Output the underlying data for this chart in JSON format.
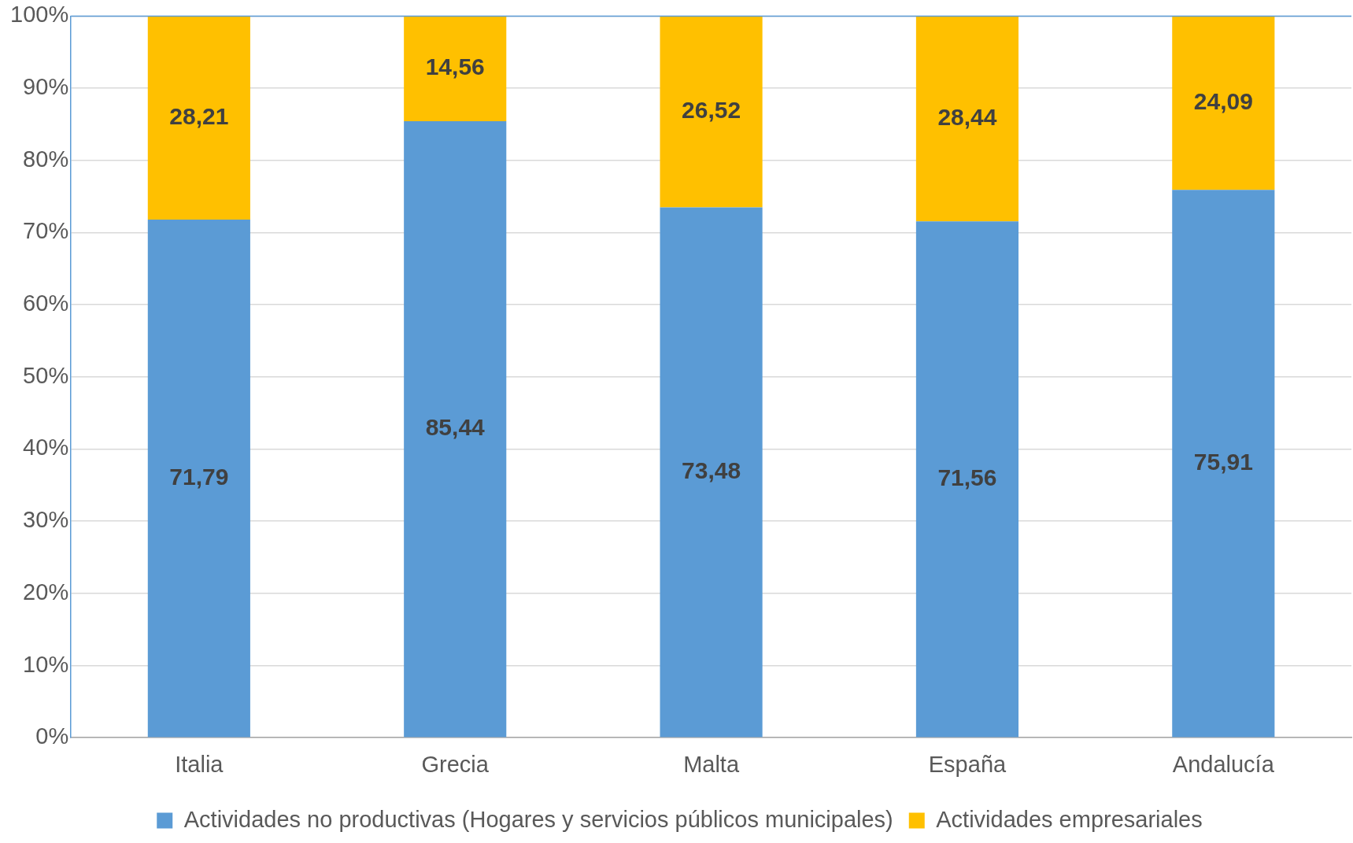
{
  "chart_data": {
    "type": "bar",
    "stacked": true,
    "categories": [
      "Italia",
      "Grecia",
      "Malta",
      "España",
      "Andalucía"
    ],
    "series": [
      {
        "name": "Actividades no productivas (Hogares y servicios públicos municipales)",
        "color": "#5b9bd5",
        "values": [
          71.79,
          85.44,
          73.48,
          71.56,
          75.91
        ],
        "value_labels": [
          "71,79",
          "85,44",
          "73,48",
          "71,56",
          "75,91"
        ]
      },
      {
        "name": "Actividades empresariales",
        "color": "#ffc000",
        "values": [
          28.21,
          14.56,
          26.52,
          28.44,
          24.09
        ],
        "value_labels": [
          "28,21",
          "14,56",
          "26,52",
          "28,44",
          "24,09"
        ]
      }
    ],
    "ylim": [
      0,
      100
    ],
    "yticks": [
      {
        "value": 0,
        "label": "0%"
      },
      {
        "value": 10,
        "label": "10%"
      },
      {
        "value": 20,
        "label": "20%"
      },
      {
        "value": 30,
        "label": "30%"
      },
      {
        "value": 40,
        "label": "40%"
      },
      {
        "value": 50,
        "label": "50%"
      },
      {
        "value": 60,
        "label": "60%"
      },
      {
        "value": 70,
        "label": "70%"
      },
      {
        "value": 80,
        "label": "80%"
      },
      {
        "value": 90,
        "label": "90%"
      },
      {
        "value": 100,
        "label": "100%"
      }
    ],
    "grid": "y",
    "legend": "bottom"
  }
}
